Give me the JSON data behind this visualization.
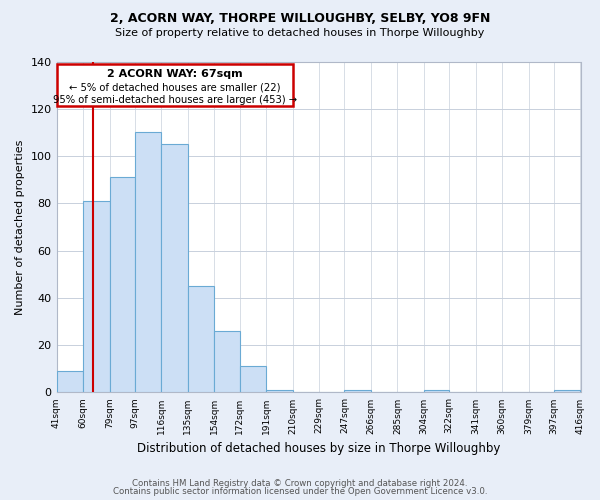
{
  "title1": "2, ACORN WAY, THORPE WILLOUGHBY, SELBY, YO8 9FN",
  "title2": "Size of property relative to detached houses in Thorpe Willoughby",
  "xlabel": "Distribution of detached houses by size in Thorpe Willoughby",
  "ylabel": "Number of detached properties",
  "bin_edges": [
    41,
    60,
    79,
    97,
    116,
    135,
    154,
    172,
    191,
    210,
    229,
    247,
    266,
    285,
    304,
    322,
    341,
    360,
    379,
    397,
    416
  ],
  "bin_heights": [
    9,
    81,
    91,
    110,
    105,
    45,
    26,
    11,
    1,
    0,
    0,
    1,
    0,
    0,
    1,
    0,
    0,
    0,
    0,
    1
  ],
  "bar_facecolor": "#ccdff5",
  "bar_edgecolor": "#6aaad4",
  "vline_x": 67,
  "vline_color": "#cc0000",
  "box_text_line1": "2 ACORN WAY: 67sqm",
  "box_text_line2": "← 5% of detached houses are smaller (22)",
  "box_text_line3": "95% of semi-detached houses are larger (453) →",
  "box_color": "#cc0000",
  "ylim": [
    0,
    140
  ],
  "yticks": [
    0,
    20,
    40,
    60,
    80,
    100,
    120,
    140
  ],
  "tick_labels": [
    "41sqm",
    "60sqm",
    "79sqm",
    "97sqm",
    "116sqm",
    "135sqm",
    "154sqm",
    "172sqm",
    "191sqm",
    "210sqm",
    "229sqm",
    "247sqm",
    "266sqm",
    "285sqm",
    "304sqm",
    "322sqm",
    "341sqm",
    "360sqm",
    "379sqm",
    "397sqm",
    "416sqm"
  ],
  "footer1": "Contains HM Land Registry data © Crown copyright and database right 2024.",
  "footer2": "Contains public sector information licensed under the Open Government Licence v3.0.",
  "figure_facecolor": "#e8eef8",
  "axes_facecolor": "#ffffff",
  "grid_color": "#c8d0dc"
}
